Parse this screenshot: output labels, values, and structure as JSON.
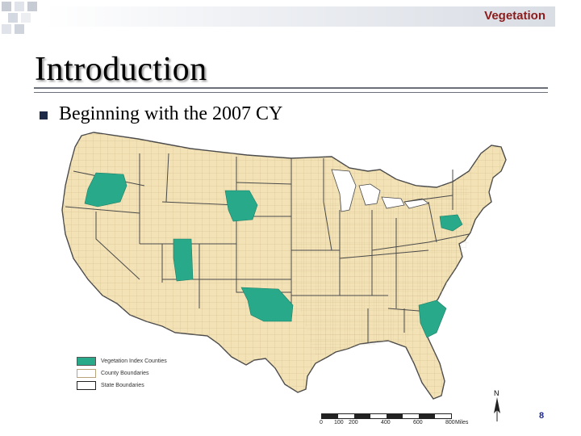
{
  "header": {
    "section_label": "Vegetation"
  },
  "slide": {
    "title": "Introduction",
    "bullet_text": "Beginning with the 2007 CY",
    "page_number": "8"
  },
  "map": {
    "colors": {
      "land": "#f3e2b5",
      "index_counties": "#27a98a",
      "county_lines": "#b7a47a",
      "state_lines": "#4a4a4a",
      "water": "#ffffff"
    },
    "highlighted_regions": [
      "Oregon",
      "South Dakota",
      "Utah",
      "Oklahoma",
      "Pennsylvania",
      "South Carolina"
    ],
    "legend": [
      {
        "label": "Vegetation Index Counties",
        "swatch": "index_counties"
      },
      {
        "label": "County Boundaries",
        "swatch": "county"
      },
      {
        "label": "State Boundaries",
        "swatch": "state"
      }
    ],
    "scale": {
      "ticks": [
        "0",
        "100",
        "200",
        "400",
        "600",
        "800"
      ],
      "unit": "Miles"
    },
    "north_label": "N"
  }
}
